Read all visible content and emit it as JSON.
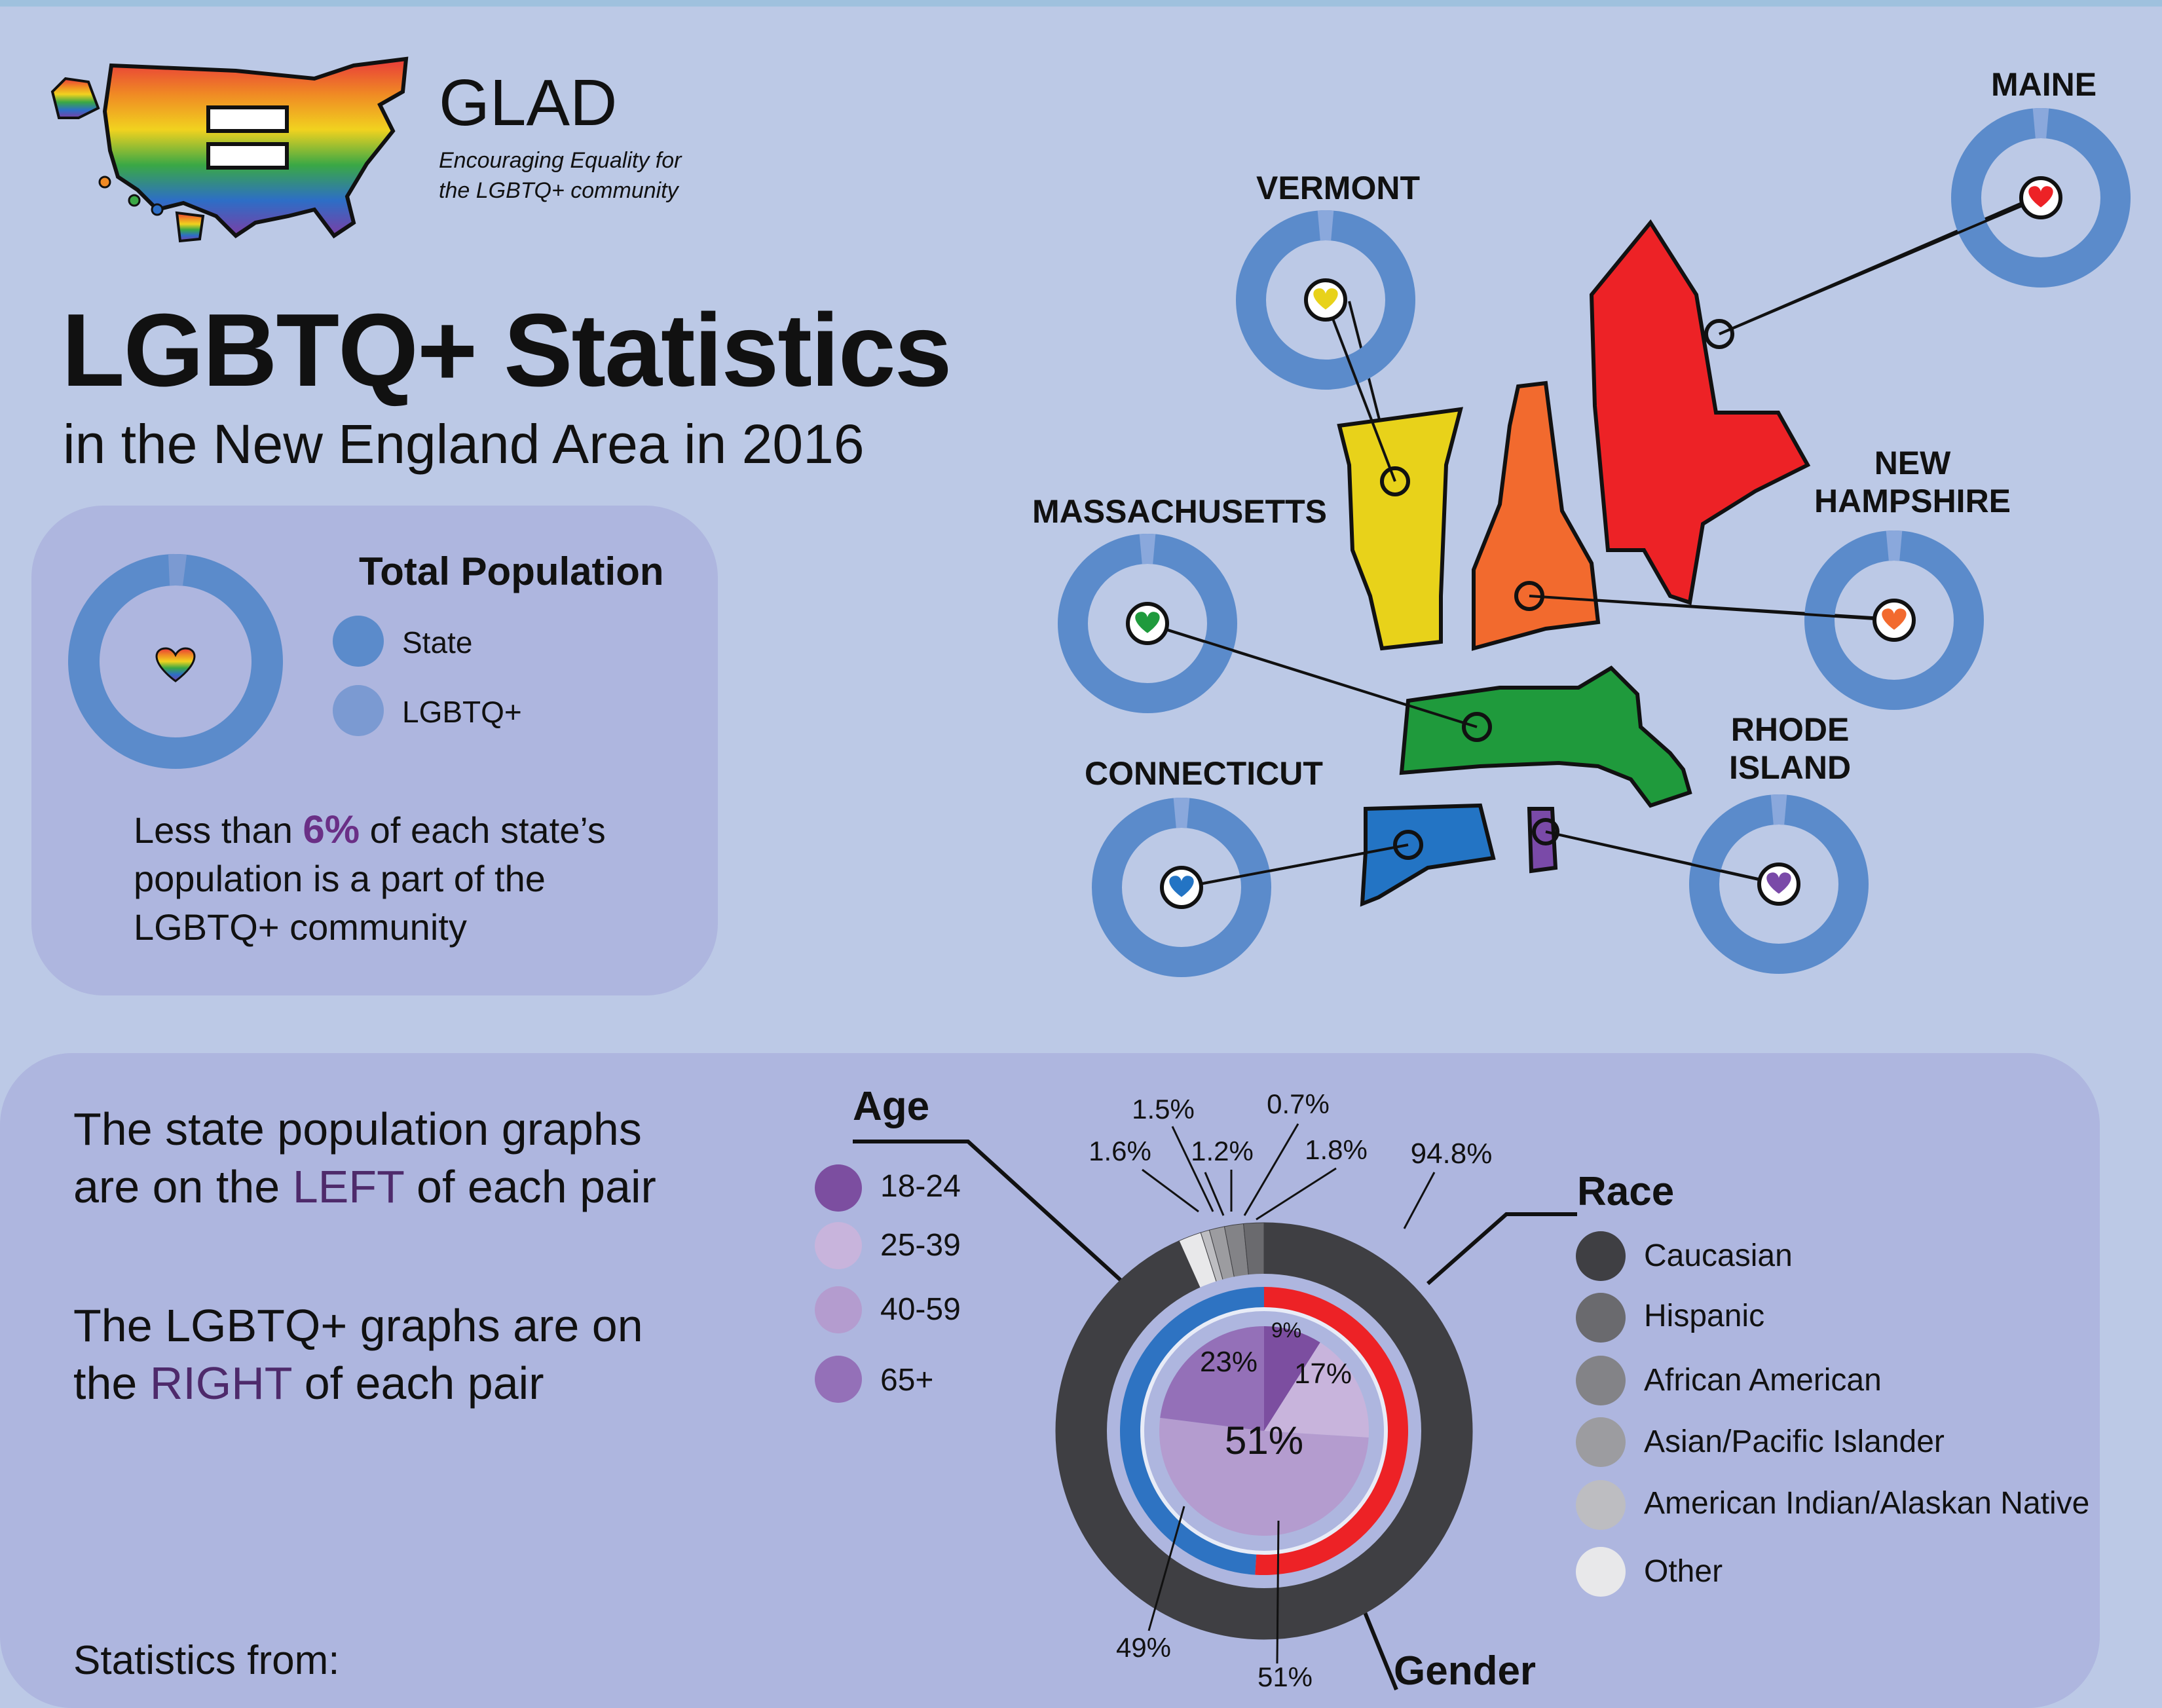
{
  "brand": {
    "name": "GLAD",
    "tagline_line1": "Encouraging Equality for",
    "tagline_line2": "the LGBTQ+ community"
  },
  "header": {
    "title": "LGBTQ+ Statistics",
    "subtitle": "in the New England Area in 2016"
  },
  "total_population": {
    "title": "Total Population",
    "legend": [
      {
        "label": "State",
        "color": "#5b8bcb"
      },
      {
        "label": "LGBTQ+",
        "color": "#7b9ad2"
      }
    ],
    "fact_before": "Less than ",
    "fact_pct": "6%",
    "fact_after": " of each state’s population is a part of the LGBTQ+ community"
  },
  "notes": {
    "left_line1": "The state population graphs",
    "left_line2_before": "are on the ",
    "left_word": "LEFT",
    "left_line2_after": " of each pair",
    "right_line1": "The LGBTQ+ graphs are on",
    "right_line2_before": "the ",
    "right_word": "RIGHT",
    "right_line2_after": " of each pair"
  },
  "source_label": "Statistics from:",
  "states": [
    {
      "name": "MAINE",
      "color": "#ed2226"
    },
    {
      "name": "VERMONT",
      "color": "#e8d21a"
    },
    {
      "name": "NEW",
      "name2": "HAMPSHIRE",
      "color": "#f26a2e"
    },
    {
      "name": "MASSACHUSETTS",
      "color": "#1f9a3c"
    },
    {
      "name": "CONNECTICUT",
      "color": "#2374c4"
    },
    {
      "name": "RHODE",
      "name2": "ISLAND",
      "color": "#7a4aa8"
    }
  ],
  "age": {
    "title": "Age",
    "legend": [
      {
        "label": "18-24",
        "color": "#7c4ea0"
      },
      {
        "label": "25-39",
        "color": "#c8b4dc"
      },
      {
        "label": "40-59",
        "color": "#b49ccf"
      },
      {
        "label": "65+",
        "color": "#9470b8"
      }
    ]
  },
  "race": {
    "title": "Race",
    "legend": [
      {
        "label": "Caucasian",
        "color": "#3f3f43"
      },
      {
        "label": "Hispanic",
        "color": "#6a6a6e"
      },
      {
        "label": "African American",
        "color": "#838387"
      },
      {
        "label": "Asian/Pacific Islander",
        "color": "#9c9ca0"
      },
      {
        "label": "American Indian/Alaskan Native",
        "color": "#bdbdc1"
      },
      {
        "label": "Other",
        "color": "#e8e8ea"
      }
    ]
  },
  "gender": {
    "title": "Gender"
  },
  "chart_data": [
    {
      "type": "pie",
      "title": "Race",
      "categories": [
        "Caucasian",
        "Hispanic",
        "African American",
        "Asian/Pacific Islander",
        "American Indian/Alaskan Native",
        "Other"
      ],
      "values": [
        94.8,
        1.6,
        1.5,
        1.2,
        0.7,
        1.8
      ],
      "labels": [
        "94.8%",
        "1.6%",
        "1.5%",
        "1.2%",
        "0.7%",
        "1.8%"
      ]
    },
    {
      "type": "pie",
      "title": "Gender",
      "categories": [
        "",
        ""
      ],
      "values": [
        51,
        49
      ],
      "labels": [
        "51%",
        "49%"
      ],
      "colors": [
        "#ed2226",
        "#2e73c2"
      ]
    },
    {
      "type": "pie",
      "title": "Age",
      "categories": [
        "18-24",
        "25-39",
        "40-59",
        "65+"
      ],
      "values": [
        9,
        17,
        51,
        23
      ],
      "labels": [
        "9%",
        "17%",
        "51%",
        "23%"
      ]
    }
  ]
}
